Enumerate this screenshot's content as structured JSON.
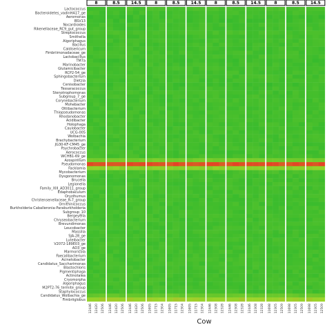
{
  "chart_data": {
    "type": "heatmap",
    "xlabel": "Cow",
    "ylabel": "",
    "legend": "none",
    "grid": false,
    "rows": [
      "Lactococcus",
      "Bacteroidetes_vadinHA17_ge",
      "Aeromonas",
      "BSV13",
      "Nocardioides",
      "Rikenellaceae_RC9_gut_group",
      "Streptococcus",
      "Smithella",
      "Algoriphagus",
      "Bacillus",
      "Caldisericum",
      "Fimbriimonadaceae_ge",
      "Lactobacillus",
      "TM7a",
      "Marinobacter",
      "Glutamicibacter",
      "RCP2-54_ge",
      "Sphingobacterium",
      "Dietzia",
      "Cenisobacter",
      "Tessaracoccus",
      "Stenotrophomonas",
      "Subgroup_7_ge",
      "Corynebacterium",
      "Mohebacter",
      "Ottibacterium",
      "Thiopseudomonas",
      "Rhodanobacter",
      "Acidibacter",
      "Holophaga",
      "Caulobacter",
      "UCG-005",
      "Wolbachia",
      "Brachybacterium",
      "JG30-KF-CM45_ge",
      "Psychrobacter",
      "Aerococcus",
      "WCHB1-69_ge",
      "Azospirillum",
      "Pseudomonas",
      "Facklamia",
      "Mycobacterium",
      "Dysgonomonas",
      "Brucella",
      "Legionella",
      "Family_XIII_AD3011_group",
      "Edaphobaculum",
      "Oryzihumus",
      "Christensenellaceae_R-7_group",
      "Ornithinicoccus",
      "Burkholderia-Caballeronia-Paraburkholderia",
      "Subgroup_10",
      "Bergeyella",
      "Chryseobacterium",
      "Brevundimonas",
      "Leucobacter",
      "Massilia",
      "SJA-28_ge",
      "Luteibacter",
      "V2072-189E03_ge",
      "AD3_ge",
      "Marmoricola",
      "Faecalibacterium",
      "Acinetobacter",
      "Candidatus_Saccharimonas",
      "Blastochloris",
      "Pigmentiphaga",
      "Actinotalea",
      "Cryomorpha",
      "Algoriphagus",
      "M2PT2-76_termite_group",
      "Staphylococcus",
      "Candidatus_Wolbachia_ge",
      "Fimbriiglobus"
    ],
    "facets": [
      {
        "label": "8",
        "cows": [
          "12446",
          "12420",
          "12506"
        ]
      },
      {
        "label": "8.5",
        "cows": [
          "12446",
          "12420",
          "12506"
        ]
      },
      {
        "label": "14.5",
        "cows": [
          "12446",
          "12420",
          "12506"
        ]
      },
      {
        "label": "8",
        "cows": [
          "11695",
          "11715",
          "12304"
        ]
      },
      {
        "label": "8.5",
        "cows": [
          "11695",
          "11715",
          "12304"
        ]
      },
      {
        "label": "14.5",
        "cows": [
          "11695",
          "11715",
          "12304"
        ]
      },
      {
        "label": "8",
        "cows": [
          "12446",
          "12308",
          "12328"
        ]
      },
      {
        "label": "8.5",
        "cows": [
          "12446",
          "12308",
          "12328"
        ]
      },
      {
        "label": "14.5",
        "cows": [
          "12446",
          "12308",
          "12328"
        ]
      },
      {
        "label": "8",
        "cows": [
          "11698",
          "12305",
          "12509"
        ]
      },
      {
        "label": "8.5",
        "cows": [
          "11698",
          "12305",
          "12509"
        ]
      },
      {
        "label": "14.5",
        "cows": [
          "11698",
          "12305",
          "12509"
        ]
      }
    ],
    "value_scale": [
      0,
      1
    ],
    "colors": {
      "low": "#2db82d",
      "mid": "#9ed52a",
      "high": "#ee2e24"
    },
    "row_baselines": [
      0.12,
      0.1,
      0.08,
      0.08,
      0.1,
      0.1,
      0.12,
      0.1,
      0.1,
      0.1,
      0.1,
      0.1,
      0.1,
      0.08,
      0.1,
      0.1,
      0.1,
      0.1,
      0.1,
      0.08,
      0.1,
      0.1,
      0.1,
      0.1,
      0.1,
      0.1,
      0.1,
      0.1,
      0.1,
      0.1,
      0.1,
      0.1,
      0.1,
      0.1,
      0.1,
      0.1,
      0.1,
      0.1,
      0.32,
      0.9,
      0.42,
      0.12,
      0.1,
      0.1,
      0.1,
      0.1,
      0.1,
      0.1,
      0.1,
      0.1,
      0.1,
      0.1,
      0.1,
      0.1,
      0.1,
      0.1,
      0.1,
      0.1,
      0.1,
      0.1,
      0.1,
      0.1,
      0.1,
      0.1,
      0.1,
      0.1,
      0.1,
      0.1,
      0.1,
      0.1,
      0.1,
      0.1,
      0.25,
      0.5
    ]
  }
}
